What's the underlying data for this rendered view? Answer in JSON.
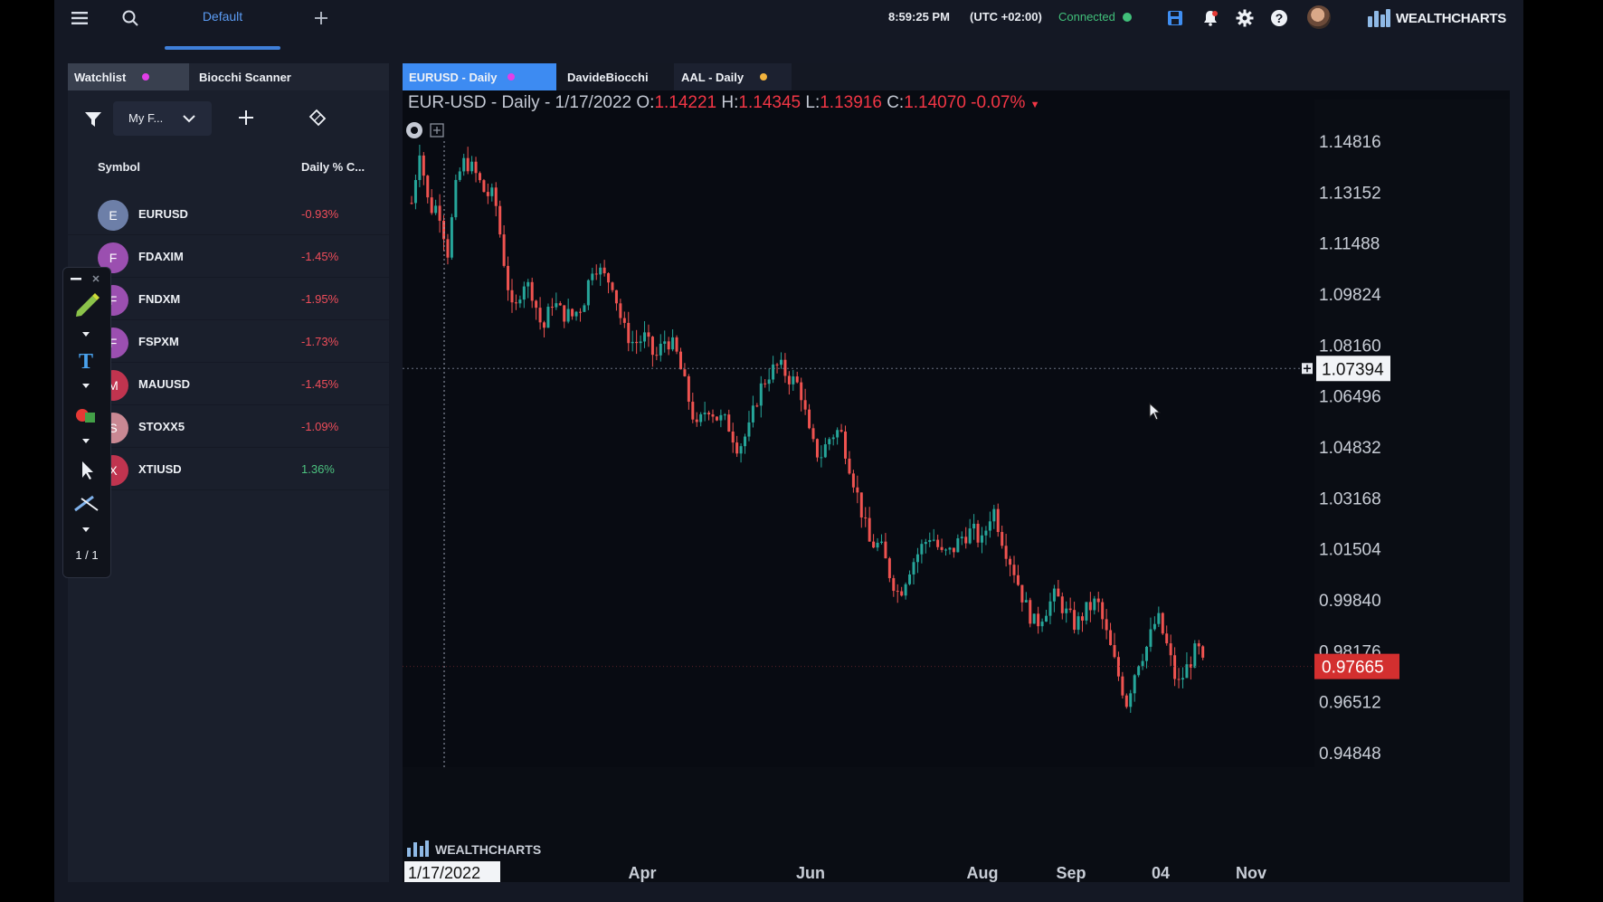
{
  "topbar": {
    "layout_tab": "Default",
    "time": "8:59:25 PM",
    "timezone": "(UTC +02:00)",
    "status": "Connected",
    "brand": "WEALTHCHARTS",
    "icons": [
      "menu-icon",
      "search-icon",
      "plus-icon",
      "save-icon",
      "bell-icon",
      "gear-icon",
      "help-icon"
    ]
  },
  "watchlist": {
    "tabs": [
      {
        "label": "Watchlist"
      },
      {
        "label": "Biocchi Scanner"
      }
    ],
    "filter_value": "My F...",
    "columns": {
      "symbol": "Symbol",
      "change": "Daily % C..."
    },
    "rows": [
      {
        "letter": "E",
        "symbol": "EURUSD",
        "change": "-0.93%",
        "color": "#6d7fa8",
        "dir": "down"
      },
      {
        "letter": "F",
        "symbol": "FDAXIM",
        "change": "-1.45%",
        "color": "#9b4fb0",
        "dir": "down"
      },
      {
        "letter": "F",
        "symbol": "FNDXM",
        "change": "-1.95%",
        "color": "#9b4fb0",
        "dir": "down"
      },
      {
        "letter": "F",
        "symbol": "FSPXM",
        "change": "-1.73%",
        "color": "#9b4fb0",
        "dir": "down"
      },
      {
        "letter": "M",
        "symbol": "MAUUSD",
        "change": "-1.45%",
        "color": "#c0344f",
        "dir": "down"
      },
      {
        "letter": "S",
        "symbol": "STOXX5",
        "change": "-1.09%",
        "color": "#c98893",
        "dir": "down"
      },
      {
        "letter": "X",
        "symbol": "XTIUSD",
        "change": "1.36%",
        "color": "#c0344f",
        "dir": "up"
      }
    ]
  },
  "drawbar": {
    "page": "1 / 1"
  },
  "chart_tabs": [
    {
      "label": "EURUSD - Daily",
      "dot": "#e23ee8"
    },
    {
      "label": "DavideBiocchi",
      "dot": ""
    },
    {
      "label": "AAL - Daily",
      "dot": "#f2b33d"
    }
  ],
  "legend": {
    "title": "EUR-USD - Daily - 1/17/2022",
    "o_label": "O:",
    "o": "1.14221",
    "h_label": "H:",
    "h": "1.14345",
    "l_label": "L:",
    "l": "1.13916",
    "c_label": "C:",
    "c": "1.14070",
    "change": "-0.07%"
  },
  "colors": {
    "up": "#26a69a",
    "down": "#ef5350",
    "accent": "#3f7fd9",
    "price_tag": "#d32f2f"
  },
  "chart_data": {
    "type": "candlestick",
    "title": "EUR-USD - Daily",
    "y_ticks": [
      "1.14816",
      "1.13152",
      "1.11488",
      "1.09824",
      "1.08160",
      "1.06496",
      "1.04832",
      "1.03168",
      "1.01504",
      "0.99840",
      "0.98176",
      "0.96512",
      "0.94848"
    ],
    "y_range": [
      0.94848,
      1.14816
    ],
    "x_ticks": [
      "Apr",
      "Jun",
      "Aug",
      "Sep",
      "04",
      "Nov"
    ],
    "crosshair_date": "1/17/2022",
    "crosshair_price": "1.07394",
    "last_price": "0.97665",
    "watermark": "WEALTHCHARTS",
    "close_path": [
      [
        0,
        1.128
      ],
      [
        6,
        1.146
      ],
      [
        13,
        1.126
      ],
      [
        20,
        1.127
      ],
      [
        27,
        1.112
      ],
      [
        34,
        1.136
      ],
      [
        40,
        1.142
      ],
      [
        47,
        1.138
      ],
      [
        55,
        1.131
      ],
      [
        62,
        1.13
      ],
      [
        69,
        1.109
      ],
      [
        76,
        1.09
      ],
      [
        83,
        1.103
      ],
      [
        90,
        1.099
      ],
      [
        98,
        1.086
      ],
      [
        105,
        1.096
      ],
      [
        112,
        1.092
      ],
      [
        120,
        1.091
      ],
      [
        128,
        1.095
      ],
      [
        136,
        1.109
      ],
      [
        143,
        1.104
      ],
      [
        150,
        1.102
      ],
      [
        158,
        1.087
      ],
      [
        166,
        1.082
      ],
      [
        174,
        1.084
      ],
      [
        182,
        1.077
      ],
      [
        190,
        1.084
      ],
      [
        197,
        1.08
      ],
      [
        205,
        1.067
      ],
      [
        213,
        1.054
      ],
      [
        221,
        1.062
      ],
      [
        228,
        1.058
      ],
      [
        236,
        1.056
      ],
      [
        244,
        1.048
      ],
      [
        252,
        1.054
      ],
      [
        259,
        1.066
      ],
      [
        266,
        1.072
      ],
      [
        274,
        1.075
      ],
      [
        282,
        1.071
      ],
      [
        290,
        1.068
      ],
      [
        298,
        1.05
      ],
      [
        305,
        1.045
      ],
      [
        313,
        1.052
      ],
      [
        320,
        1.054
      ],
      [
        328,
        1.041
      ],
      [
        335,
        1.029
      ],
      [
        342,
        1.017
      ],
      [
        350,
        1.016
      ],
      [
        357,
        1.007
      ],
      [
        364,
        1.0
      ],
      [
        372,
        1.009
      ],
      [
        380,
        1.015
      ],
      [
        388,
        1.02
      ],
      [
        396,
        1.013
      ],
      [
        403,
        1.014
      ],
      [
        411,
        1.019
      ],
      [
        419,
        1.021
      ],
      [
        426,
        1.017
      ],
      [
        434,
        1.029
      ],
      [
        442,
        1.017
      ],
      [
        450,
        1.008
      ],
      [
        458,
        0.997
      ],
      [
        466,
        0.99
      ],
      [
        473,
        0.995
      ],
      [
        481,
        1.0
      ],
      [
        489,
        0.994
      ],
      [
        496,
        0.99
      ],
      [
        504,
        0.995
      ],
      [
        512,
        0.998
      ],
      [
        519,
        0.987
      ],
      [
        527,
        0.975
      ],
      [
        534,
        0.965
      ],
      [
        542,
        0.978
      ],
      [
        549,
        0.983
      ],
      [
        557,
        0.993
      ],
      [
        565,
        0.982
      ],
      [
        572,
        0.97
      ],
      [
        580,
        0.977
      ],
      [
        587,
        0.983
      ],
      [
        591,
        0.977
      ]
    ]
  }
}
